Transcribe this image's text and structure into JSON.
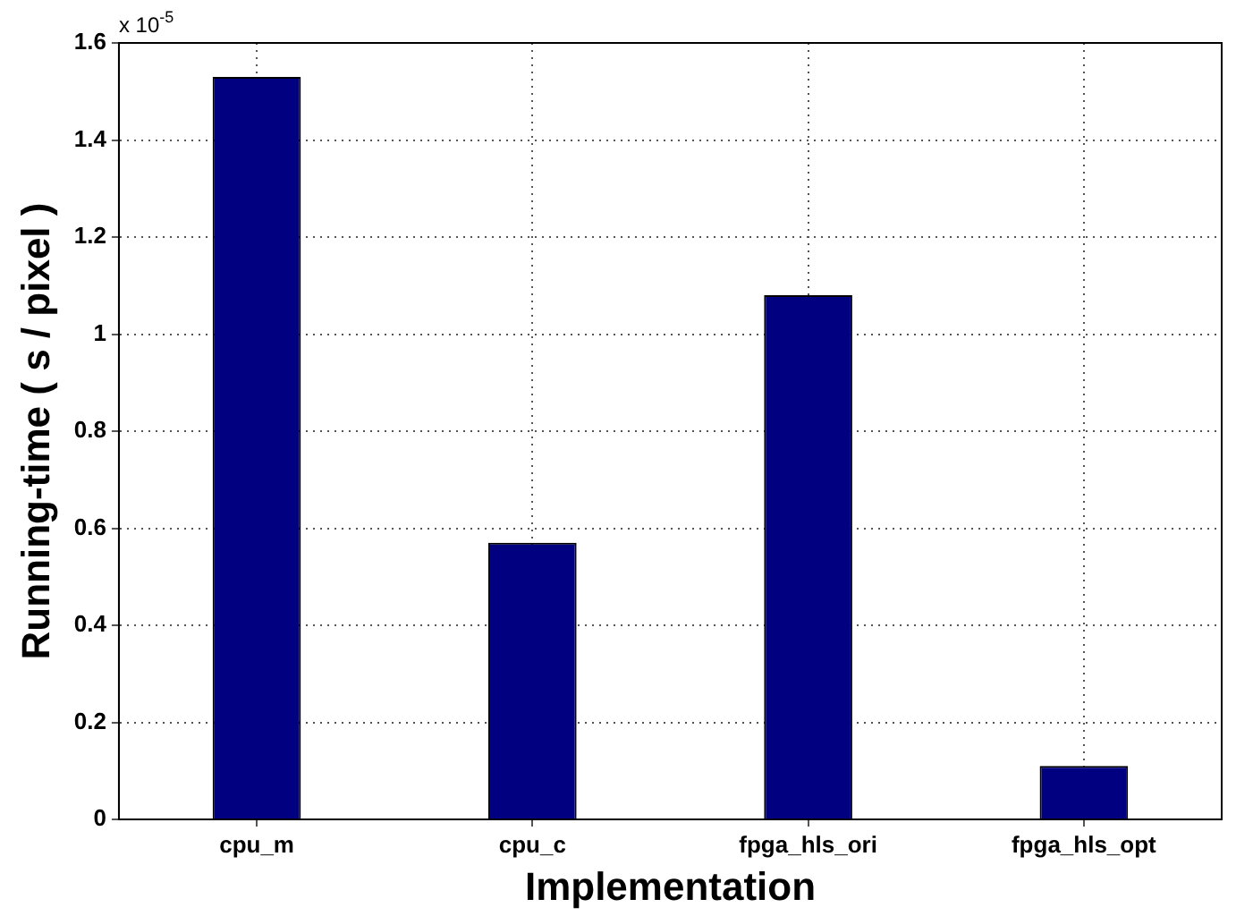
{
  "chart_data": {
    "type": "bar",
    "xlabel": "Implementation",
    "ylabel": "Running-time ( s / pixel )",
    "categories": [
      "cpu_m",
      "cpu_c",
      "fpga_hls_ori",
      "fpga_hls_opt"
    ],
    "values": [
      1.53,
      0.57,
      1.08,
      0.11
    ],
    "color": "#000080",
    "ylim": [
      0,
      1.6
    ],
    "yticks": [
      0,
      0.2,
      0.4,
      0.6,
      0.8,
      1,
      1.2,
      1.4,
      1.6
    ],
    "annotations": [
      "x 10$^{-5}$"
    ],
    "grid": true,
    "legend": false
  }
}
